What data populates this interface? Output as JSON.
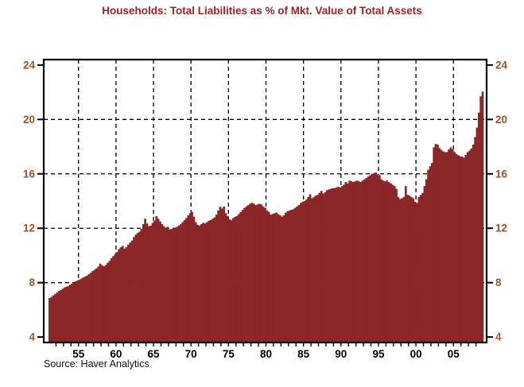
{
  "title": "Households: Total Liabilities as % of Mkt. Value of Total Assets",
  "source": "Source: Haver Analytics",
  "colors": {
    "background": "#ffffff",
    "bar": "#8B2629",
    "title": "#9E2226",
    "axis_number": "#A0522D",
    "axis_line": "#000000",
    "grid_line": "#000000",
    "x_label": "#000000"
  },
  "chart_data": {
    "type": "bar",
    "title": "Households: Total Liabilities as % of Mkt. Value of Total Assets",
    "xlabel": "",
    "ylabel": "",
    "frequency": "quarterly",
    "start_year": 1951,
    "end_year": 2008,
    "ylim": [
      3.6,
      24.4
    ],
    "y_ticks": [
      4,
      8,
      12,
      16,
      20,
      24
    ],
    "y_grid_values": [
      8,
      12,
      16,
      20
    ],
    "x_tick_years": [
      1955,
      1960,
      1965,
      1970,
      1975,
      1980,
      1985,
      1990,
      1995,
      2000,
      2005
    ],
    "x_tick_labels": [
      "55",
      "60",
      "65",
      "70",
      "75",
      "80",
      "85",
      "90",
      "95",
      "00",
      "05"
    ],
    "grid": "dashed",
    "legend": "none",
    "values": [
      6.86,
      6.95,
      7.06,
      7.15,
      7.27,
      7.38,
      7.45,
      7.55,
      7.65,
      7.7,
      7.74,
      7.85,
      7.94,
      8.02,
      8.1,
      8.17,
      8.23,
      8.3,
      8.38,
      8.45,
      8.52,
      8.62,
      8.73,
      8.85,
      8.95,
      9.05,
      9.18,
      9.4,
      9.28,
      9.2,
      9.3,
      9.45,
      9.6,
      9.79,
      9.95,
      10.1,
      10.25,
      10.47,
      10.6,
      10.7,
      10.5,
      10.62,
      10.8,
      10.95,
      11.1,
      11.35,
      11.53,
      11.65,
      11.75,
      11.95,
      12.3,
      12.7,
      12.35,
      12.15,
      12.2,
      12.4,
      12.55,
      12.9,
      12.7,
      12.5,
      12.3,
      12.15,
      12.0,
      12.1,
      11.9,
      11.95,
      12.0,
      11.95,
      12.1,
      12.2,
      12.3,
      12.45,
      12.6,
      12.75,
      12.95,
      13.1,
      13.2,
      12.85,
      12.45,
      12.25,
      12.2,
      12.3,
      12.4,
      12.35,
      12.45,
      12.55,
      12.6,
      12.7,
      12.8,
      13.0,
      13.3,
      13.58,
      13.45,
      13.6,
      13.1,
      12.9,
      12.65,
      12.6,
      12.75,
      12.85,
      12.9,
      13.05,
      13.2,
      13.35,
      13.5,
      13.6,
      13.7,
      13.8,
      13.87,
      13.8,
      13.7,
      13.75,
      13.8,
      13.75,
      13.6,
      13.5,
      13.3,
      13.2,
      13.0,
      13.05,
      13.1,
      13.15,
      13.05,
      12.95,
      12.85,
      12.95,
      13.15,
      13.25,
      13.3,
      13.35,
      13.4,
      13.5,
      13.6,
      13.7,
      13.85,
      13.95,
      14.0,
      14.1,
      14.3,
      14.5,
      14.2,
      14.3,
      14.4,
      14.45,
      14.6,
      14.75,
      14.55,
      14.65,
      14.8,
      14.85,
      14.9,
      14.94,
      14.95,
      15.0,
      15.05,
      15.0,
      15.1,
      15.2,
      15.4,
      15.3,
      15.5,
      15.45,
      15.4,
      15.45,
      15.5,
      15.45,
      15.4,
      15.5,
      15.6,
      15.7,
      15.8,
      15.9,
      16.0,
      16.05,
      16.1,
      15.95,
      15.9,
      15.6,
      15.5,
      15.45,
      15.5,
      15.4,
      15.3,
      15.2,
      15.1,
      14.9,
      14.3,
      14.15,
      14.2,
      14.3,
      15.1,
      14.45,
      14.4,
      14.3,
      14.2,
      13.95,
      13.85,
      14.3,
      14.45,
      14.6,
      15.1,
      15.6,
      16.3,
      16.55,
      16.8,
      17.95,
      18.2,
      18.15,
      17.9,
      17.76,
      17.65,
      17.6,
      17.6,
      17.8,
      17.95,
      17.8,
      17.6,
      17.45,
      17.37,
      17.3,
      17.27,
      17.2,
      17.4,
      17.6,
      17.7,
      17.86,
      18.15,
      18.7,
      19.4,
      20.5,
      21.7,
      22.05
    ]
  }
}
